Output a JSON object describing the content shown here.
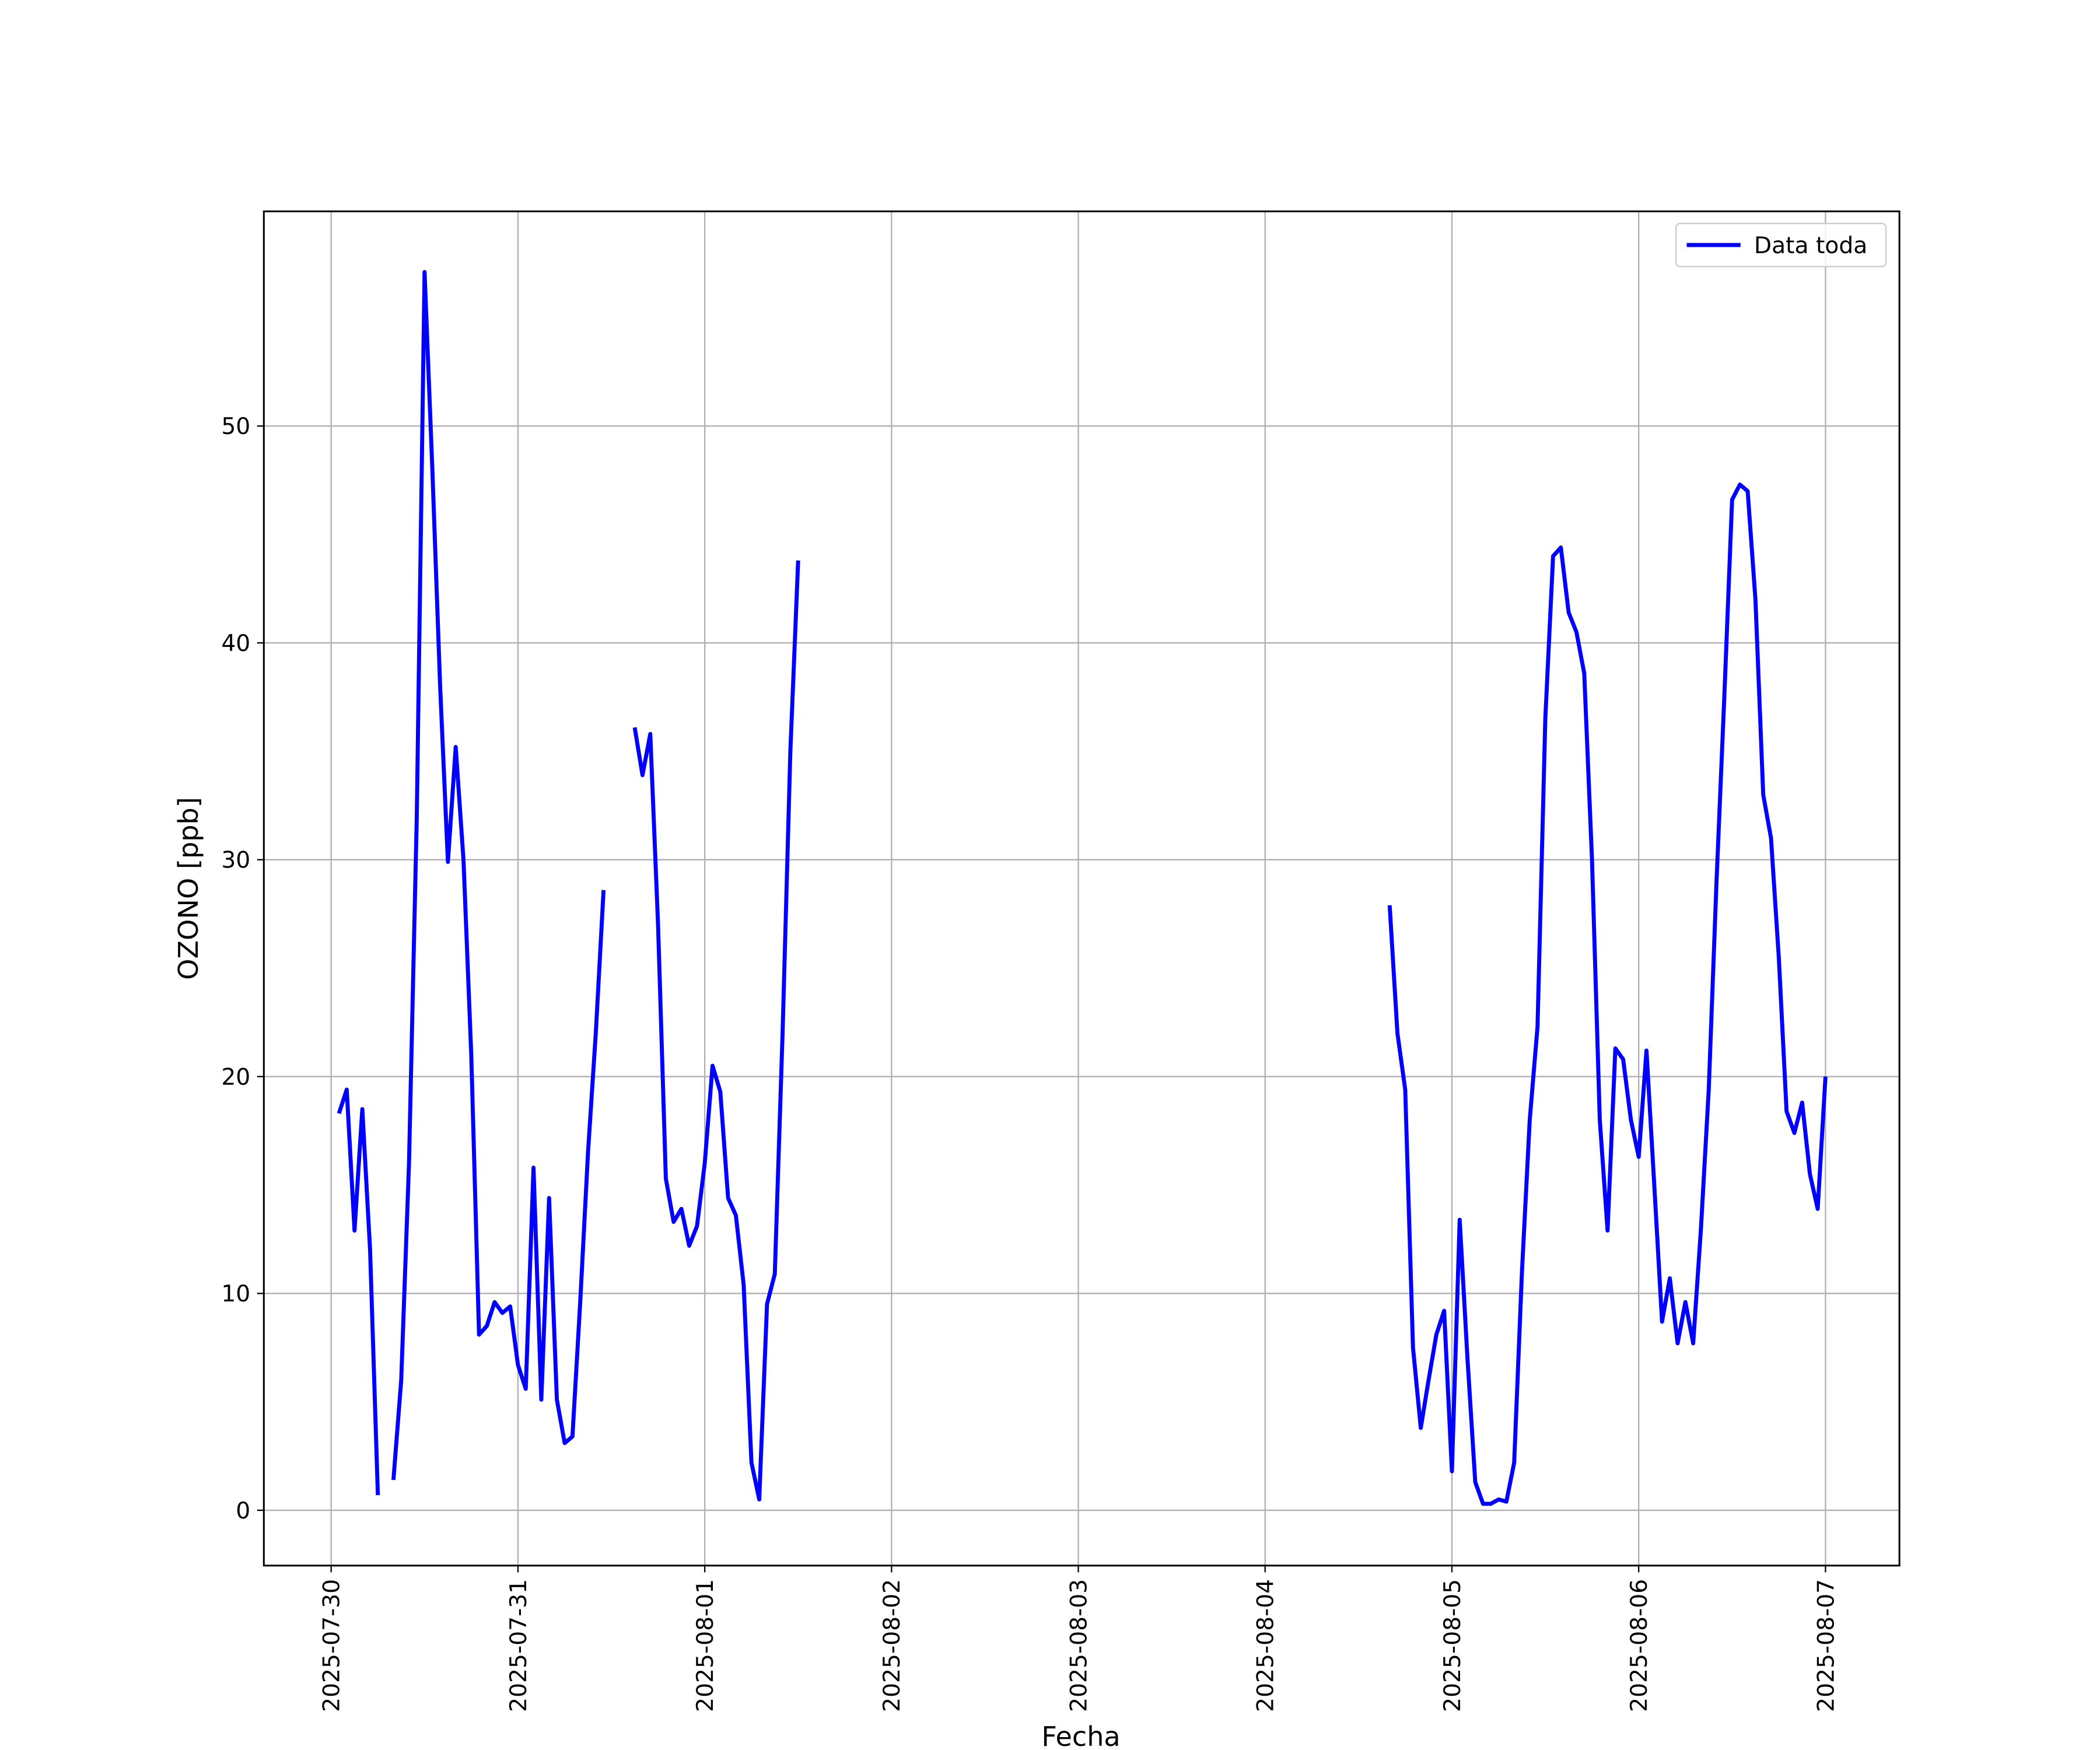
{
  "chart_data": {
    "type": "line",
    "xlabel": "Fecha",
    "ylabel": "OZONO [ppb]",
    "grid": true,
    "legend": "upper right",
    "xlim": [
      "2025-07-29 15:21",
      "2025-08-07 09:30"
    ],
    "xticks": [
      "2025-07-30",
      "2025-07-31",
      "2025-08-01",
      "2025-08-02",
      "2025-08-03",
      "2025-08-04",
      "2025-08-05",
      "2025-08-06",
      "2025-08-07"
    ],
    "ylim": [
      -2.55,
      59.9
    ],
    "yticks": [
      0,
      10,
      20,
      30,
      40,
      50
    ],
    "x": [
      "2025-07-30 01:00",
      "2025-07-30 02:00",
      "2025-07-30 03:00",
      "2025-07-30 04:00",
      "2025-07-30 05:00",
      "2025-07-30 06:00",
      "2025-07-30 07:00",
      "2025-07-30 08:00",
      "2025-07-30 09:00",
      "2025-07-30 10:00",
      "2025-07-30 11:00",
      "2025-07-30 12:00",
      "2025-07-30 13:00",
      "2025-07-30 14:00",
      "2025-07-30 15:00",
      "2025-07-30 16:00",
      "2025-07-30 17:00",
      "2025-07-30 18:00",
      "2025-07-30 19:00",
      "2025-07-30 20:00",
      "2025-07-30 21:00",
      "2025-07-30 22:00",
      "2025-07-30 23:00",
      "2025-07-31 00:00",
      "2025-07-31 01:00",
      "2025-07-31 02:00",
      "2025-07-31 03:00",
      "2025-07-31 04:00",
      "2025-07-31 05:00",
      "2025-07-31 06:00",
      "2025-07-31 07:00",
      "2025-07-31 08:00",
      "2025-07-31 09:00",
      "2025-07-31 10:00",
      "2025-07-31 11:00",
      "2025-07-31 12:00",
      "2025-07-31 15:00",
      "2025-07-31 16:00",
      "2025-07-31 17:00",
      "2025-07-31 18:00",
      "2025-07-31 19:00",
      "2025-07-31 20:00",
      "2025-07-31 21:00",
      "2025-07-31 22:00",
      "2025-07-31 23:00",
      "2025-08-01 00:00",
      "2025-08-01 01:00",
      "2025-08-01 02:00",
      "2025-08-01 03:00",
      "2025-08-01 04:00",
      "2025-08-01 05:00",
      "2025-08-01 06:00",
      "2025-08-01 07:00",
      "2025-08-01 08:00",
      "2025-08-01 09:00",
      "2025-08-01 10:00",
      "2025-08-01 11:00",
      "2025-08-01 12:00",
      "2025-08-01 13:00",
      "2025-08-04 16:00",
      "2025-08-04 17:00",
      "2025-08-04 18:00",
      "2025-08-04 19:00",
      "2025-08-04 20:00",
      "2025-08-04 21:00",
      "2025-08-04 22:00",
      "2025-08-04 23:00",
      "2025-08-05 00:00",
      "2025-08-05 01:00",
      "2025-08-05 02:00",
      "2025-08-05 03:00",
      "2025-08-05 04:00",
      "2025-08-05 05:00",
      "2025-08-05 06:00",
      "2025-08-05 07:00",
      "2025-08-05 08:00",
      "2025-08-05 09:00",
      "2025-08-05 10:00",
      "2025-08-05 11:00",
      "2025-08-05 12:00",
      "2025-08-05 13:00",
      "2025-08-05 14:00",
      "2025-08-05 15:00",
      "2025-08-05 16:00",
      "2025-08-05 17:00",
      "2025-08-05 18:00",
      "2025-08-05 19:00",
      "2025-08-05 20:00",
      "2025-08-05 21:00",
      "2025-08-05 22:00",
      "2025-08-05 23:00",
      "2025-08-06 00:00",
      "2025-08-06 01:00",
      "2025-08-06 02:00",
      "2025-08-06 03:00",
      "2025-08-06 04:00",
      "2025-08-06 05:00",
      "2025-08-06 06:00",
      "2025-08-06 07:00",
      "2025-08-06 08:00",
      "2025-08-06 09:00",
      "2025-08-06 10:00",
      "2025-08-06 11:00",
      "2025-08-06 12:00",
      "2025-08-06 13:00",
      "2025-08-06 14:00",
      "2025-08-06 15:00",
      "2025-08-06 16:00",
      "2025-08-06 17:00",
      "2025-08-06 18:00",
      "2025-08-06 19:00",
      "2025-08-06 20:00",
      "2025-08-06 21:00",
      "2025-08-06 22:00",
      "2025-08-06 23:00",
      "2025-08-07 00:00"
    ],
    "series": [
      {
        "name": "Data toda",
        "color": "#0000ff",
        "values": [
          18.3,
          19.4,
          12.9,
          18.5,
          12,
          0.7,
          null,
          1.4,
          6,
          16,
          32,
          57.1,
          48,
          38,
          29.9,
          35.2,
          30,
          21,
          8.1,
          8.5,
          9.6,
          9.1,
          9.4,
          6.7,
          5.6,
          15.8,
          5.1,
          14.4,
          5.1,
          3.1,
          3.4,
          9.6,
          16.5,
          22,
          28.6,
          null,
          36.1,
          33.9,
          35.8,
          27,
          15.3,
          13.3,
          13.9,
          12.2,
          13.1,
          16,
          20.5,
          19.3,
          14.4,
          13.6,
          10.4,
          2.2,
          0.5,
          9.5,
          10.9,
          22,
          35,
          43.8,
          null,
          27.9,
          22,
          19.4,
          7.5,
          3.8,
          6,
          8.1,
          9.2,
          1.8,
          13.4,
          7,
          1.3,
          0.3,
          0.3,
          0.5,
          0.4,
          2.2,
          11,
          18,
          22.3,
          36.5,
          44,
          44.4,
          41.4,
          40.5,
          38.6,
          30,
          18,
          12.9,
          21.3,
          20.8,
          18,
          16.3,
          21.2,
          15,
          8.7,
          10.7,
          7.7,
          9.6,
          7.7,
          13,
          19.4,
          29,
          37.5,
          46.6,
          47.3,
          47,
          42,
          33,
          31,
          25.5,
          18.4,
          17.4,
          18.8,
          15.5,
          13.9,
          20
        ]
      }
    ]
  }
}
